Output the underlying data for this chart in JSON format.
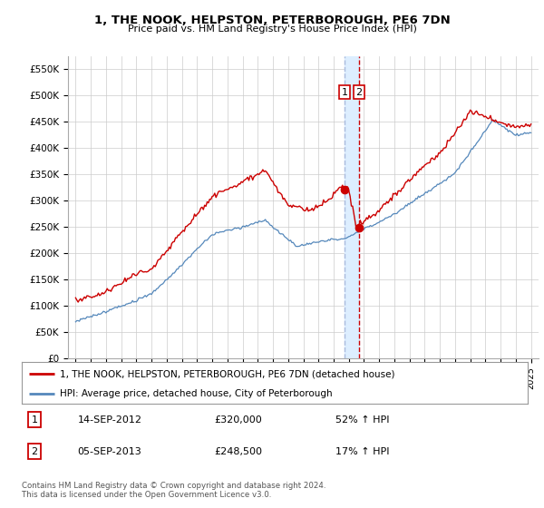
{
  "title": "1, THE NOOK, HELPSTON, PETERBOROUGH, PE6 7DN",
  "subtitle": "Price paid vs. HM Land Registry's House Price Index (HPI)",
  "ylabel_ticks": [
    "£0",
    "£50K",
    "£100K",
    "£150K",
    "£200K",
    "£250K",
    "£300K",
    "£350K",
    "£400K",
    "£450K",
    "£500K",
    "£550K"
  ],
  "ytick_values": [
    0,
    50000,
    100000,
    150000,
    200000,
    250000,
    300000,
    350000,
    400000,
    450000,
    500000,
    550000
  ],
  "ylim": [
    0,
    575000
  ],
  "x_start_year": 1995,
  "x_end_year": 2025,
  "sale1_date": 2012.71,
  "sale1_price": 320000,
  "sale1_label": "1",
  "sale2_date": 2013.67,
  "sale2_price": 248500,
  "sale2_label": "2",
  "legend_line1": "1, THE NOOK, HELPSTON, PETERBOROUGH, PE6 7DN (detached house)",
  "legend_line2": "HPI: Average price, detached house, City of Peterborough",
  "table_row1": [
    "1",
    "14-SEP-2012",
    "£320,000",
    "52% ↑ HPI"
  ],
  "table_row2": [
    "2",
    "05-SEP-2013",
    "£248,500",
    "17% ↑ HPI"
  ],
  "footnote": "Contains HM Land Registry data © Crown copyright and database right 2024.\nThis data is licensed under the Open Government Licence v3.0.",
  "red_color": "#cc0000",
  "blue_color": "#5588bb",
  "shade_color": "#ddeeff",
  "background_color": "#ffffff",
  "grid_color": "#cccccc"
}
